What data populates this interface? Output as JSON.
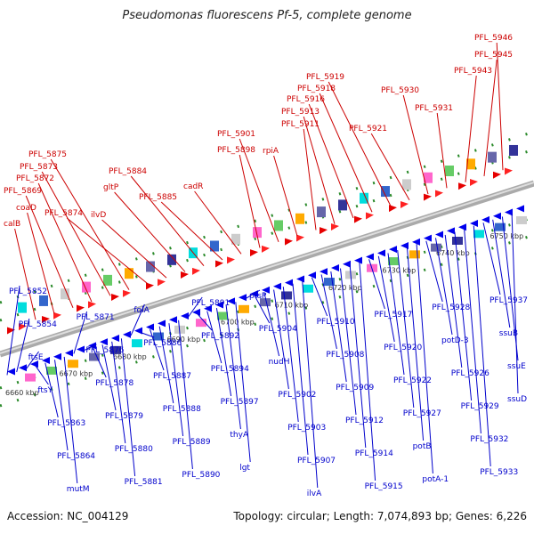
{
  "title": "Pseudomonas fluorescens Pf-5, complete genome",
  "footer": {
    "accession": "Accession: NC_004129",
    "summary": "Topology: circular; Length: 7,074,893 bp; Genes: 6,226"
  },
  "colors": {
    "forward_label": "#cc0000",
    "reverse_label": "#0000cc",
    "backbone": "#888888",
    "ticks": "#2a8a2a"
  },
  "scale_labels": [
    "6660 kbp",
    "6670 kbp",
    "6680 kbp",
    "6690 kbp",
    "6700 kbp",
    "6710 kbp",
    "6720 kbp",
    "6730 kbp",
    "6740 kbp",
    "6750 kbp"
  ],
  "forward_genes": [
    "calB",
    "coaD",
    "PFL_5869",
    "PFL_5872",
    "PFL_5873",
    "PFL_5875",
    "PFL_5874",
    "ilvD",
    "gltP",
    "PFL_5884",
    "PFL_5885",
    "cadR",
    "PFL_5898",
    "PFL_5901",
    "rpiA",
    "PFL_5911",
    "PFL_5913",
    "PFL_5916",
    "PFL_5918",
    "PFL_5919",
    "PFL_5921",
    "PFL_5930",
    "PFL_5931",
    "PFL_5943",
    "PFL_5945",
    "PFL_5946"
  ],
  "reverse_genes": [
    "PFL_5852",
    "PFL_5854",
    "ftsE",
    "ftsY",
    "PFL_5863",
    "PFL_5864",
    "mutM",
    "PFL_5871",
    "PFL_5876",
    "PFL_5878",
    "PFL_5879",
    "PFL_5880",
    "PFL_5881",
    "folA",
    "PFL_5886",
    "PFL_5887",
    "PFL_5888",
    "PFL_5889",
    "PFL_5890",
    "PFL_5891",
    "PFL_5892",
    "PFL_5894",
    "PFL_5897",
    "thyA",
    "lgt",
    "ptsP",
    "PFL_5904",
    "nudH",
    "PFL_5902",
    "PFL_5903",
    "PFL_5907",
    "ilvA",
    "PFL_5910",
    "PFL_5908",
    "PFL_5909",
    "PFL_5912",
    "PFL_5914",
    "PFL_5915",
    "PFL_5917",
    "PFL_5920",
    "PFL_5922",
    "PFL_5927",
    "potB",
    "potA-1",
    "PFL_5928",
    "potD-3",
    "PFL_5926",
    "PFL_5929",
    "PFL_5932",
    "PFL_5933",
    "PFL_5937",
    "ssuB",
    "ssuE",
    "ssuD"
  ]
}
